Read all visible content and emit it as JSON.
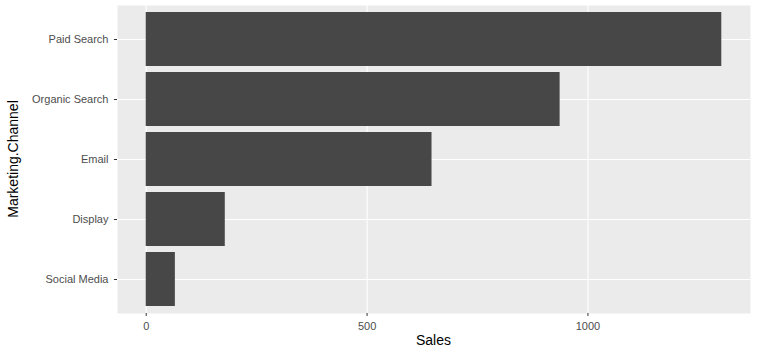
{
  "chart_data": {
    "type": "bar",
    "orientation": "horizontal",
    "xlabel": "Sales",
    "ylabel": "Marketing.Channel",
    "categories": [
      "Paid Search",
      "Organic Search",
      "Email",
      "Display",
      "Social Media"
    ],
    "values": [
      1303,
      937,
      647,
      179,
      66
    ],
    "color": "#474747",
    "xlim": [
      -65,
      1368
    ],
    "xticks": [
      0,
      500,
      1000
    ],
    "grid": true
  }
}
